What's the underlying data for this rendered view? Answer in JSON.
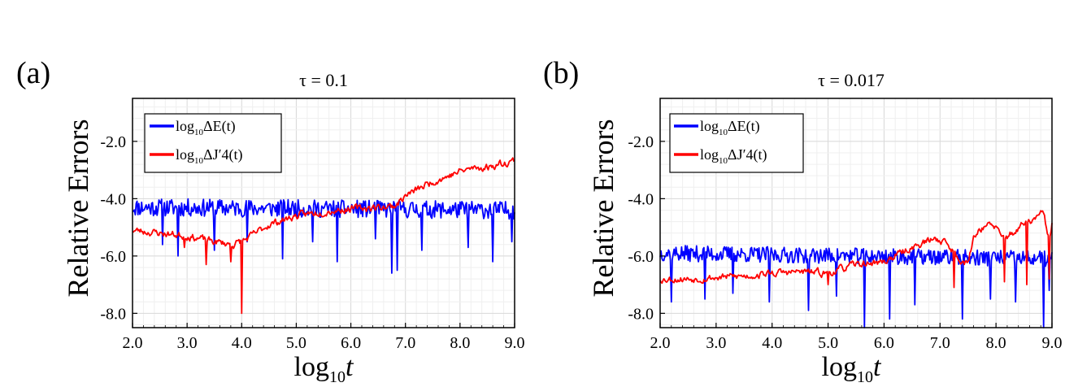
{
  "chart_data": [
    {
      "type": "line",
      "panel_label": "(a)",
      "title": "τ = 0.1",
      "xlabel": "log10 t",
      "xlabel_main": "log",
      "xlabel_sub": "10",
      "xlabel_var": "t",
      "ylabel": "Relative Errors",
      "xlim": [
        2.0,
        9.0
      ],
      "ylim": [
        -8.5,
        -0.5
      ],
      "xticks": [
        2.0,
        3.0,
        4.0,
        5.0,
        6.0,
        7.0,
        8.0,
        9.0
      ],
      "xtick_labels": [
        "2.0",
        "3.0",
        "4.0",
        "5.0",
        "6.0",
        "7.0",
        "8.0",
        "9.0"
      ],
      "yticks": [
        -8.0,
        -6.0,
        -4.0,
        -2.0
      ],
      "ytick_labels": [
        "-8.0",
        "-6.0",
        "-4.0",
        "-2.0"
      ],
      "grid": true,
      "legend_position": "top-left",
      "series": [
        {
          "name": "log10 ΔE(t)",
          "legend_main": "log",
          "legend_sub": "10",
          "legend_rest": "ΔE(t)",
          "color": "#0000ff",
          "kind": "noisy",
          "baseline": -4.4,
          "noise": 0.22,
          "seed": 11,
          "spikes": [
            [
              2.55,
              -5.6
            ],
            [
              2.83,
              -6.0
            ],
            [
              3.5,
              -5.8
            ],
            [
              4.1,
              -5.5
            ],
            [
              4.75,
              -6.1
            ],
            [
              5.3,
              -5.5
            ],
            [
              5.75,
              -6.2
            ],
            [
              6.45,
              -5.4
            ],
            [
              6.75,
              -6.6
            ],
            [
              6.85,
              -6.5
            ],
            [
              7.3,
              -5.8
            ],
            [
              8.15,
              -5.7
            ],
            [
              8.6,
              -6.2
            ],
            [
              8.95,
              -5.5
            ]
          ],
          "points": [
            [
              2.0,
              -4.3
            ],
            [
              9.0,
              -4.4
            ]
          ]
        },
        {
          "name": "log10 ΔJ′4(t)",
          "legend_main": "log",
          "legend_sub": "10",
          "legend_rest": "ΔJ′4(t)",
          "color": "#ff0000",
          "kind": "trend",
          "noise": 0.1,
          "seed": 23,
          "spikes": [
            [
              2.95,
              -5.7
            ],
            [
              3.35,
              -6.3
            ],
            [
              3.8,
              -6.2
            ],
            [
              4.0,
              -8.0
            ]
          ],
          "points": [
            [
              2.0,
              -5.1
            ],
            [
              2.5,
              -5.2
            ],
            [
              3.0,
              -5.3
            ],
            [
              3.5,
              -5.5
            ],
            [
              3.85,
              -5.6
            ],
            [
              4.1,
              -5.4
            ],
            [
              4.5,
              -4.9
            ],
            [
              5.0,
              -4.6
            ],
            [
              5.5,
              -4.45
            ],
            [
              6.0,
              -4.35
            ],
            [
              6.5,
              -4.3
            ],
            [
              6.8,
              -4.25
            ],
            [
              7.0,
              -3.9
            ],
            [
              7.5,
              -3.4
            ],
            [
              7.8,
              -3.2
            ],
            [
              8.0,
              -3.05
            ],
            [
              8.2,
              -2.95
            ],
            [
              8.5,
              -2.9
            ],
            [
              9.0,
              -2.65
            ]
          ]
        }
      ]
    },
    {
      "type": "line",
      "panel_label": "(b)",
      "title": "τ = 0.017",
      "xlabel": "log10 t",
      "xlabel_main": "log",
      "xlabel_sub": "10",
      "xlabel_var": "t",
      "ylabel": "Relative Errors",
      "xlim": [
        2.0,
        9.0
      ],
      "ylim": [
        -8.5,
        -0.5
      ],
      "xticks": [
        2.0,
        3.0,
        4.0,
        5.0,
        6.0,
        7.0,
        8.0,
        9.0
      ],
      "xtick_labels": [
        "2.0",
        "3.0",
        "4.0",
        "5.0",
        "6.0",
        "7.0",
        "8.0",
        "9.0"
      ],
      "yticks": [
        -8.0,
        -6.0,
        -4.0,
        -2.0
      ],
      "ytick_labels": [
        "-8.0",
        "-6.0",
        "-4.0",
        "-2.0"
      ],
      "grid": true,
      "legend_position": "top-left",
      "series": [
        {
          "name": "log10 ΔE(t)",
          "legend_main": "log",
          "legend_sub": "10",
          "legend_rest": "ΔE(t)",
          "color": "#0000ff",
          "kind": "noisy",
          "baseline": -6.0,
          "noise": 0.2,
          "seed": 37,
          "spikes": [
            [
              2.2,
              -7.6
            ],
            [
              2.8,
              -7.5
            ],
            [
              3.3,
              -7.3
            ],
            [
              3.95,
              -7.6
            ],
            [
              4.65,
              -7.9
            ],
            [
              5.15,
              -7.4
            ],
            [
              5.65,
              -8.5
            ],
            [
              6.1,
              -8.2
            ],
            [
              6.55,
              -7.7
            ],
            [
              7.4,
              -8.2
            ],
            [
              7.9,
              -7.5
            ],
            [
              8.35,
              -7.6
            ],
            [
              8.85,
              -8.5
            ],
            [
              8.95,
              -7.2
            ]
          ],
          "points": [
            [
              2.0,
              -5.9
            ],
            [
              9.0,
              -6.1
            ]
          ]
        },
        {
          "name": "log10 ΔJ′4(t)",
          "legend_main": "log",
          "legend_sub": "10",
          "legend_rest": "ΔJ′4(t)",
          "color": "#ff0000",
          "kind": "trend",
          "noise": 0.1,
          "seed": 53,
          "spikes": [
            [
              5.0,
              -7.0
            ],
            [
              7.25,
              -7.1
            ],
            [
              8.15,
              -6.9
            ],
            [
              8.55,
              -7.0
            ],
            [
              8.95,
              -6.8
            ]
          ],
          "points": [
            [
              2.0,
              -6.8
            ],
            [
              2.5,
              -6.8
            ],
            [
              3.0,
              -6.75
            ],
            [
              3.5,
              -6.7
            ],
            [
              4.0,
              -6.6
            ],
            [
              4.5,
              -6.55
            ],
            [
              5.0,
              -6.6
            ],
            [
              5.5,
              -6.3
            ],
            [
              6.0,
              -6.2
            ],
            [
              6.5,
              -5.7
            ],
            [
              6.9,
              -5.4
            ],
            [
              7.1,
              -5.5
            ],
            [
              7.3,
              -6.0
            ],
            [
              7.5,
              -6.3
            ],
            [
              7.6,
              -5.3
            ],
            [
              7.8,
              -4.9
            ],
            [
              8.0,
              -5.0
            ],
            [
              8.1,
              -5.4
            ],
            [
              8.3,
              -5.2
            ],
            [
              8.5,
              -4.9
            ],
            [
              8.7,
              -4.7
            ],
            [
              8.85,
              -4.5
            ],
            [
              8.95,
              -5.5
            ],
            [
              9.0,
              -4.85
            ]
          ]
        }
      ]
    }
  ]
}
